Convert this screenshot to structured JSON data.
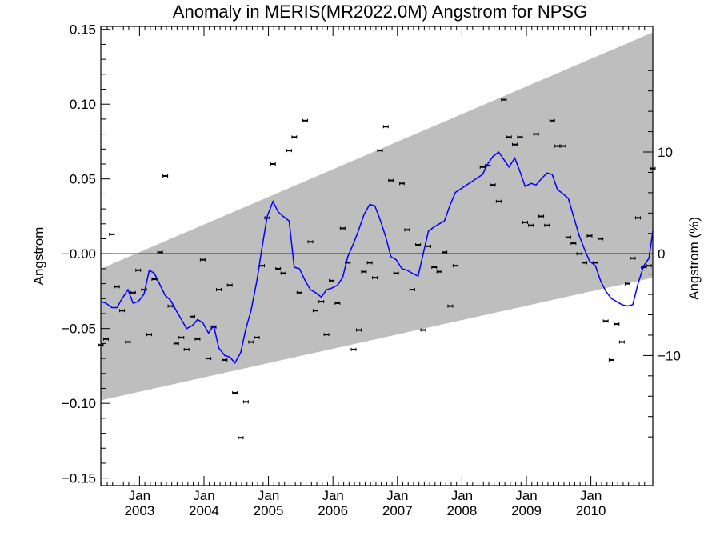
{
  "chart_data": {
    "type": "scatter",
    "title": "Anomaly in MERIS(MR2022.0M) Angstrom for NPSG",
    "xlabel": "",
    "ylabel": "Angstrom",
    "ylabel_right": "Angstrom (%)",
    "xlim": [
      2002.4,
      2010.96
    ],
    "ylim": [
      -0.155,
      0.152
    ],
    "yticks": [
      -0.15,
      -0.1,
      -0.05,
      0.0,
      0.05,
      0.1,
      0.15
    ],
    "ytick_labels": [
      "−0.15",
      "−0.10",
      "−0.05",
      "−0.00",
      "0.05",
      "0.10",
      "0.15"
    ],
    "y2ticks": [
      -10,
      0,
      10
    ],
    "y2tick_labels": [
      "−10",
      "0",
      "10"
    ],
    "y2_scale_percent_per_unit": 147,
    "xticks": [
      {
        "x": 2003.0,
        "month": "Jan",
        "year": "2003"
      },
      {
        "x": 2004.0,
        "month": "Jan",
        "year": "2004"
      },
      {
        "x": 2005.0,
        "month": "Jan",
        "year": "2005"
      },
      {
        "x": 2006.0,
        "month": "Jan",
        "year": "2006"
      },
      {
        "x": 2007.0,
        "month": "Jan",
        "year": "2007"
      },
      {
        "x": 2008.0,
        "month": "Jan",
        "year": "2008"
      },
      {
        "x": 2009.0,
        "month": "Jan",
        "year": "2009"
      },
      {
        "x": 2010.0,
        "month": "Jan",
        "year": "2010"
      }
    ],
    "zero_line": 0,
    "trend_band": {
      "x": [
        2002.4,
        2010.96
      ],
      "upper": [
        -0.01,
        0.148
      ],
      "lower": [
        -0.098,
        -0.016
      ],
      "color": "#bebebe"
    },
    "series": [
      {
        "kind": "points",
        "color": "#000000",
        "x": [
          2002.4,
          2002.48,
          2002.57,
          2002.65,
          2002.73,
          2002.82,
          2002.9,
          2002.98,
          2003.07,
          2003.15,
          2003.23,
          2003.32,
          2003.4,
          2003.48,
          2003.57,
          2003.65,
          2003.73,
          2003.82,
          2003.9,
          2003.98,
          2004.07,
          2004.15,
          2004.23,
          2004.32,
          2004.4,
          2004.48,
          2004.57,
          2004.65,
          2004.73,
          2004.82,
          2004.9,
          2004.98,
          2005.07,
          2005.15,
          2005.23,
          2005.32,
          2005.4,
          2005.48,
          2005.57,
          2005.65,
          2005.73,
          2005.82,
          2005.9,
          2005.98,
          2006.07,
          2006.15,
          2006.23,
          2006.32,
          2006.4,
          2006.48,
          2006.57,
          2006.65,
          2006.73,
          2006.82,
          2006.9,
          2006.98,
          2007.07,
          2007.15,
          2007.23,
          2007.32,
          2007.4,
          2007.48,
          2007.57,
          2007.65,
          2007.73,
          2007.82,
          2007.9,
          2008.32,
          2008.4,
          2008.48,
          2008.57,
          2008.65,
          2008.73,
          2008.82,
          2008.9,
          2008.98,
          2009.07,
          2009.15,
          2009.23,
          2009.32,
          2009.4,
          2009.48,
          2009.57,
          2009.65,
          2009.73,
          2009.82,
          2009.9,
          2009.98,
          2010.07,
          2010.15,
          2010.23,
          2010.32,
          2010.4,
          2010.48,
          2010.57,
          2010.65,
          2010.73,
          2010.82,
          2010.9,
          2010.96
        ],
        "y": [
          -0.061,
          -0.057,
          0.013,
          -0.022,
          -0.038,
          -0.059,
          -0.026,
          -0.011,
          -0.024,
          -0.054,
          -0.017,
          0.001,
          0.052,
          -0.035,
          -0.06,
          -0.056,
          -0.064,
          -0.042,
          -0.057,
          -0.004,
          -0.07,
          -0.049,
          -0.024,
          -0.071,
          -0.021,
          -0.093,
          -0.123,
          -0.099,
          -0.059,
          -0.056,
          -0.008,
          0.024,
          0.06,
          -0.01,
          -0.013,
          0.069,
          0.078,
          -0.026,
          0.089,
          0.008,
          -0.038,
          -0.032,
          -0.054,
          -0.018,
          -0.033,
          0.017,
          -0.006,
          -0.064,
          -0.051,
          -0.012,
          -0.006,
          -0.016,
          0.069,
          0.085,
          0.049,
          -0.013,
          0.047,
          0.016,
          -0.024,
          0.006,
          -0.051,
          0.005,
          -0.009,
          -0.012,
          0.001,
          -0.035,
          -0.008,
          0.058,
          0.059,
          0.046,
          0.035,
          0.103,
          0.078,
          0.073,
          0.078,
          0.021,
          0.019,
          0.08,
          0.025,
          0.019,
          0.089,
          0.072,
          0.072,
          0.011,
          0.007,
          0.0,
          -0.006,
          0.012,
          -0.006,
          0.01,
          -0.045,
          -0.071,
          -0.047,
          -0.059,
          -0.02,
          -0.003,
          0.024,
          -0.009,
          -0.008,
          0.057
        ]
      },
      {
        "kind": "line",
        "color": "#0000ff",
        "x": [
          2002.4,
          2002.48,
          2002.57,
          2002.65,
          2002.73,
          2002.82,
          2002.9,
          2002.98,
          2003.07,
          2003.15,
          2003.23,
          2003.32,
          2003.4,
          2003.48,
          2003.57,
          2003.65,
          2003.73,
          2003.82,
          2003.9,
          2003.98,
          2004.07,
          2004.15,
          2004.23,
          2004.32,
          2004.4,
          2004.48,
          2004.57,
          2004.65,
          2004.73,
          2004.82,
          2004.9,
          2004.98,
          2005.07,
          2005.15,
          2005.23,
          2005.32,
          2005.4,
          2005.48,
          2005.57,
          2005.65,
          2005.73,
          2005.82,
          2005.9,
          2005.98,
          2006.07,
          2006.15,
          2006.23,
          2006.32,
          2006.4,
          2006.48,
          2006.57,
          2006.65,
          2006.73,
          2006.82,
          2006.9,
          2006.98,
          2007.07,
          2007.15,
          2007.23,
          2007.32,
          2007.4,
          2007.48,
          2007.57,
          2007.65,
          2007.73,
          2007.82,
          2007.9,
          2008.32,
          2008.4,
          2008.48,
          2008.57,
          2008.65,
          2008.73,
          2008.82,
          2008.9,
          2008.98,
          2009.07,
          2009.15,
          2009.23,
          2009.32,
          2009.4,
          2009.48,
          2009.57,
          2009.65,
          2009.73,
          2009.82,
          2009.9,
          2009.98,
          2010.07,
          2010.15,
          2010.23,
          2010.32,
          2010.4,
          2010.48,
          2010.57,
          2010.65,
          2010.73,
          2010.82,
          2010.9,
          2010.96
        ],
        "y": [
          -0.032,
          -0.033,
          -0.036,
          -0.036,
          -0.03,
          -0.024,
          -0.033,
          -0.032,
          -0.027,
          -0.011,
          -0.013,
          -0.021,
          -0.028,
          -0.031,
          -0.038,
          -0.044,
          -0.05,
          -0.048,
          -0.044,
          -0.046,
          -0.053,
          -0.048,
          -0.063,
          -0.068,
          -0.069,
          -0.073,
          -0.066,
          -0.05,
          -0.038,
          -0.018,
          0.004,
          0.025,
          0.035,
          0.028,
          0.025,
          0.022,
          -0.009,
          -0.01,
          -0.018,
          -0.024,
          -0.026,
          -0.029,
          -0.024,
          -0.023,
          -0.021,
          -0.016,
          -0.002,
          0.007,
          0.016,
          0.026,
          0.033,
          0.032,
          0.023,
          0.011,
          -0.002,
          -0.004,
          -0.01,
          -0.011,
          -0.013,
          -0.015,
          0.0,
          0.015,
          0.018,
          0.02,
          0.022,
          0.033,
          0.041,
          0.053,
          0.06,
          0.065,
          0.068,
          0.063,
          0.058,
          0.064,
          0.055,
          0.045,
          0.047,
          0.046,
          0.05,
          0.054,
          0.053,
          0.043,
          0.04,
          0.037,
          0.025,
          0.012,
          0.003,
          -0.005,
          -0.008,
          -0.018,
          -0.025,
          -0.03,
          -0.032,
          -0.034,
          -0.035,
          -0.034,
          -0.02,
          -0.008,
          -0.003,
          0.015
        ]
      }
    ]
  }
}
